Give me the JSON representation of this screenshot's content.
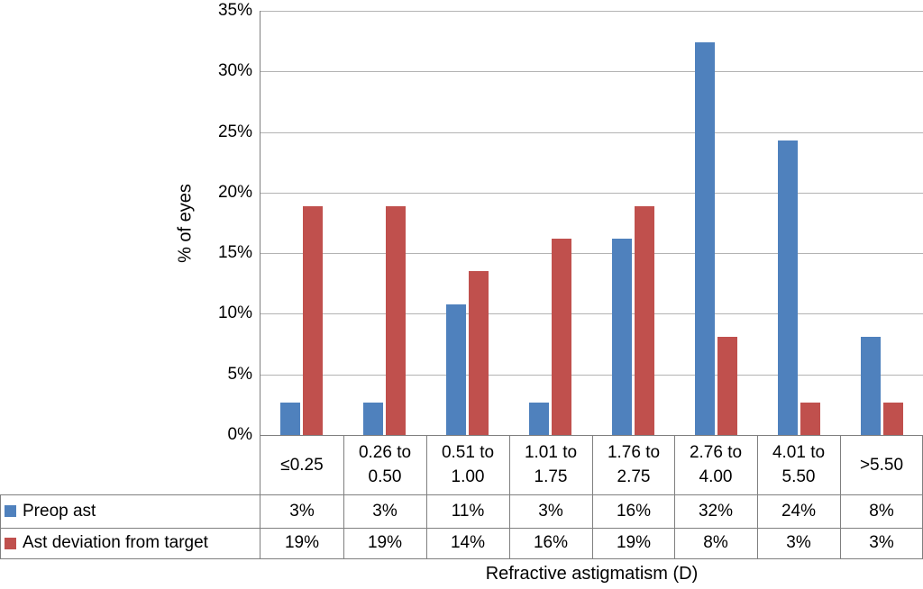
{
  "chart_data": {
    "type": "bar",
    "title": "",
    "xlabel": "Refractive astigmatism (D)",
    "ylabel": "% of eyes",
    "ylim": [
      0,
      35
    ],
    "ytick_step": 5,
    "ytick_labels": [
      "0%",
      "5%",
      "10%",
      "15%",
      "20%",
      "25%",
      "30%",
      "35%"
    ],
    "grid": true,
    "legend_position": "table-left",
    "categories": [
      "≤0.25",
      "0.26 to 0.50",
      "0.51 to 1.00",
      "1.01 to 1.75",
      "1.76 to 2.75",
      "2.76 to 4.00",
      "4.01 to 5.50",
      ">5.50"
    ],
    "category_label_lines": [
      [
        "≤0.25"
      ],
      [
        "0.26 to",
        "0.50"
      ],
      [
        "0.51 to",
        "1.00"
      ],
      [
        "1.01 to",
        "1.75"
      ],
      [
        "1.76 to",
        "2.75"
      ],
      [
        "2.76 to",
        "4.00"
      ],
      [
        "4.01 to",
        "5.50"
      ],
      [
        ">5.50"
      ]
    ],
    "series": [
      {
        "name": "Preop ast",
        "color": "#4F81BD",
        "values": [
          2.7,
          2.7,
          10.8,
          2.7,
          16.2,
          32.4,
          24.3,
          8.1
        ],
        "table_values": [
          "3%",
          "3%",
          "11%",
          "3%",
          "16%",
          "32%",
          "24%",
          "8%"
        ]
      },
      {
        "name": "Ast deviation from target",
        "color": "#C0504D",
        "values": [
          18.9,
          18.9,
          13.5,
          16.2,
          18.9,
          8.1,
          2.7,
          2.7
        ],
        "table_values": [
          "19%",
          "19%",
          "14%",
          "16%",
          "19%",
          "8%",
          "3%",
          "3%"
        ]
      }
    ],
    "line_colors": {
      "gridline": "#b3b3b3",
      "axis_and_table": "#7f7f7f"
    }
  }
}
